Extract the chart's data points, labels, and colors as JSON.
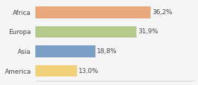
{
  "categories": [
    "Africa",
    "Europa",
    "Asia",
    "America"
  ],
  "values": [
    36.2,
    31.9,
    18.8,
    13.0
  ],
  "labels": [
    "36,2%",
    "31,9%",
    "18,8%",
    "13,0%"
  ],
  "bar_colors": [
    "#e8a87c",
    "#b5c98a",
    "#7b9fc4",
    "#f0d078"
  ],
  "background_color": "#f5f5f5",
  "xlim": [
    0,
    50
  ],
  "label_fontsize": 6.5,
  "tick_fontsize": 6.5,
  "bar_height": 0.6
}
